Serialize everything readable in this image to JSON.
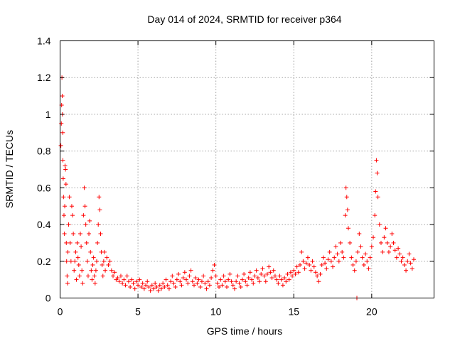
{
  "chart_data": {
    "type": "scatter",
    "title": "Day 014 of 2024, SRMTID for receiver p364",
    "xlabel": "GPS time / hours",
    "ylabel": "SRMTID / TECUs",
    "xlim": [
      0,
      24
    ],
    "ylim": [
      0,
      1.4
    ],
    "xticks": [
      0,
      5,
      10,
      15,
      20
    ],
    "yticks": [
      0,
      0.2,
      0.4,
      0.6,
      0.8,
      1,
      1.2,
      1.4
    ],
    "grid": true,
    "marker": "plus",
    "color": "#ff0000",
    "series": [
      {
        "name": "SRMTID",
        "points": [
          [
            0.05,
            0.83
          ],
          [
            0.08,
            0.95
          ],
          [
            0.1,
            1.05
          ],
          [
            0.12,
            1.2
          ],
          [
            0.14,
            1.1
          ],
          [
            0.15,
            1.0
          ],
          [
            0.17,
            0.9
          ],
          [
            0.18,
            0.75
          ],
          [
            0.2,
            0.65
          ],
          [
            0.22,
            0.55
          ],
          [
            0.25,
            0.45
          ],
          [
            0.28,
            0.35
          ],
          [
            0.3,
            0.5
          ],
          [
            0.32,
            0.72
          ],
          [
            0.35,
            0.7
          ],
          [
            0.38,
            0.62
          ],
          [
            0.4,
            0.3
          ],
          [
            0.42,
            0.2
          ],
          [
            0.45,
            0.12
          ],
          [
            0.48,
            0.08
          ],
          [
            0.5,
            0.25
          ],
          [
            0.55,
            0.4
          ],
          [
            0.6,
            0.55
          ],
          [
            0.65,
            0.3
          ],
          [
            0.7,
            0.2
          ],
          [
            0.75,
            0.5
          ],
          [
            0.8,
            0.45
          ],
          [
            0.85,
            0.35
          ],
          [
            0.9,
            0.15
          ],
          [
            0.95,
            0.2
          ],
          [
            1.0,
            0.25
          ],
          [
            1.05,
            0.1
          ],
          [
            1.1,
            0.3
          ],
          [
            1.15,
            0.22
          ],
          [
            1.2,
            0.18
          ],
          [
            1.25,
            0.12
          ],
          [
            1.3,
            0.35
          ],
          [
            1.35,
            0.28
          ],
          [
            1.4,
            0.15
          ],
          [
            1.45,
            0.08
          ],
          [
            1.5,
            0.45
          ],
          [
            1.55,
            0.6
          ],
          [
            1.6,
            0.5
          ],
          [
            1.65,
            0.4
          ],
          [
            1.7,
            0.3
          ],
          [
            1.75,
            0.2
          ],
          [
            1.8,
            0.12
          ],
          [
            1.85,
            0.35
          ],
          [
            1.9,
            0.42
          ],
          [
            1.95,
            0.25
          ],
          [
            2.0,
            0.15
          ],
          [
            2.05,
            0.1
          ],
          [
            2.1,
            0.18
          ],
          [
            2.15,
            0.22
          ],
          [
            2.2,
            0.12
          ],
          [
            2.25,
            0.08
          ],
          [
            2.3,
            0.15
          ],
          [
            2.35,
            0.2
          ],
          [
            2.4,
            0.3
          ],
          [
            2.45,
            0.4
          ],
          [
            2.5,
            0.55
          ],
          [
            2.55,
            0.48
          ],
          [
            2.6,
            0.35
          ],
          [
            2.65,
            0.25
          ],
          [
            2.7,
            0.18
          ],
          [
            2.75,
            0.12
          ],
          [
            2.8,
            0.2
          ],
          [
            2.85,
            0.25
          ],
          [
            2.9,
            0.15
          ],
          [
            3.0,
            0.22
          ],
          [
            3.1,
            0.18
          ],
          [
            3.2,
            0.2
          ],
          [
            3.3,
            0.15
          ],
          [
            3.4,
            0.12
          ],
          [
            3.5,
            0.14
          ],
          [
            3.6,
            0.1
          ],
          [
            3.7,
            0.11
          ],
          [
            3.8,
            0.09
          ],
          [
            3.9,
            0.12
          ],
          [
            4.0,
            0.08
          ],
          [
            4.1,
            0.1
          ],
          [
            4.2,
            0.07
          ],
          [
            4.3,
            0.12
          ],
          [
            4.4,
            0.09
          ],
          [
            4.5,
            0.06
          ],
          [
            4.6,
            0.1
          ],
          [
            4.7,
            0.08
          ],
          [
            4.8,
            0.05
          ],
          [
            4.9,
            0.09
          ],
          [
            5.0,
            0.07
          ],
          [
            5.1,
            0.1
          ],
          [
            5.2,
            0.06
          ],
          [
            5.3,
            0.08
          ],
          [
            5.4,
            0.05
          ],
          [
            5.5,
            0.07
          ],
          [
            5.6,
            0.09
          ],
          [
            5.7,
            0.06
          ],
          [
            5.8,
            0.04
          ],
          [
            5.9,
            0.07
          ],
          [
            6.0,
            0.05
          ],
          [
            6.1,
            0.08
          ],
          [
            6.2,
            0.06
          ],
          [
            6.3,
            0.04
          ],
          [
            6.4,
            0.07
          ],
          [
            6.5,
            0.05
          ],
          [
            6.6,
            0.08
          ],
          [
            6.7,
            0.06
          ],
          [
            6.8,
            0.1
          ],
          [
            6.9,
            0.07
          ],
          [
            7.0,
            0.05
          ],
          [
            7.1,
            0.09
          ],
          [
            7.2,
            0.12
          ],
          [
            7.3,
            0.08
          ],
          [
            7.4,
            0.06
          ],
          [
            7.5,
            0.1
          ],
          [
            7.6,
            0.13
          ],
          [
            7.7,
            0.09
          ],
          [
            7.8,
            0.07
          ],
          [
            7.9,
            0.11
          ],
          [
            8.0,
            0.14
          ],
          [
            8.1,
            0.1
          ],
          [
            8.2,
            0.08
          ],
          [
            8.3,
            0.12
          ],
          [
            8.4,
            0.15
          ],
          [
            8.5,
            0.09
          ],
          [
            8.6,
            0.07
          ],
          [
            8.7,
            0.11
          ],
          [
            8.8,
            0.08
          ],
          [
            8.9,
            0.1
          ],
          [
            9.0,
            0.06
          ],
          [
            9.1,
            0.09
          ],
          [
            9.2,
            0.12
          ],
          [
            9.3,
            0.08
          ],
          [
            9.4,
            0.05
          ],
          [
            9.5,
            0.09
          ],
          [
            9.6,
            0.07
          ],
          [
            9.7,
            0.11
          ],
          [
            9.8,
            0.15
          ],
          [
            9.9,
            0.18
          ],
          [
            10.0,
            0.12
          ],
          [
            10.1,
            0.08
          ],
          [
            10.2,
            0.06
          ],
          [
            10.3,
            0.1
          ],
          [
            10.4,
            0.07
          ],
          [
            10.5,
            0.12
          ],
          [
            10.6,
            0.09
          ],
          [
            10.7,
            0.06
          ],
          [
            10.8,
            0.1
          ],
          [
            10.9,
            0.13
          ],
          [
            11.0,
            0.09
          ],
          [
            11.1,
            0.07
          ],
          [
            11.2,
            0.05
          ],
          [
            11.3,
            0.09
          ],
          [
            11.4,
            0.12
          ],
          [
            11.5,
            0.08
          ],
          [
            11.6,
            0.06
          ],
          [
            11.7,
            0.1
          ],
          [
            11.8,
            0.13
          ],
          [
            11.9,
            0.09
          ],
          [
            12.0,
            0.07
          ],
          [
            12.1,
            0.11
          ],
          [
            12.2,
            0.14
          ],
          [
            12.3,
            0.1
          ],
          [
            12.4,
            0.08
          ],
          [
            12.5,
            0.12
          ],
          [
            12.6,
            0.15
          ],
          [
            12.7,
            0.11
          ],
          [
            12.8,
            0.09
          ],
          [
            12.9,
            0.13
          ],
          [
            13.0,
            0.16
          ],
          [
            13.1,
            0.12
          ],
          [
            13.2,
            0.09
          ],
          [
            13.3,
            0.13
          ],
          [
            13.4,
            0.17
          ],
          [
            13.5,
            0.14
          ],
          [
            13.6,
            0.11
          ],
          [
            13.7,
            0.15
          ],
          [
            13.8,
            0.12
          ],
          [
            13.9,
            0.1
          ],
          [
            14.0,
            0.08
          ],
          [
            14.1,
            0.12
          ],
          [
            14.2,
            0.1
          ],
          [
            14.3,
            0.07
          ],
          [
            14.4,
            0.11
          ],
          [
            14.5,
            0.09
          ],
          [
            14.6,
            0.13
          ],
          [
            14.7,
            0.1
          ],
          [
            14.8,
            0.14
          ],
          [
            14.9,
            0.12
          ],
          [
            15.0,
            0.15
          ],
          [
            15.1,
            0.13
          ],
          [
            15.2,
            0.17
          ],
          [
            15.3,
            0.14
          ],
          [
            15.4,
            0.18
          ],
          [
            15.5,
            0.25
          ],
          [
            15.6,
            0.2
          ],
          [
            15.7,
            0.16
          ],
          [
            15.8,
            0.19
          ],
          [
            15.9,
            0.22
          ],
          [
            16.0,
            0.18
          ],
          [
            16.1,
            0.15
          ],
          [
            16.2,
            0.2
          ],
          [
            16.3,
            0.17
          ],
          [
            16.4,
            0.14
          ],
          [
            16.5,
            0.12
          ],
          [
            16.6,
            0.09
          ],
          [
            16.7,
            0.13
          ],
          [
            16.8,
            0.18
          ],
          [
            16.9,
            0.22
          ],
          [
            17.0,
            0.19
          ],
          [
            17.1,
            0.16
          ],
          [
            17.2,
            0.21
          ],
          [
            17.3,
            0.25
          ],
          [
            17.4,
            0.2
          ],
          [
            17.5,
            0.17
          ],
          [
            17.6,
            0.22
          ],
          [
            17.7,
            0.28
          ],
          [
            17.8,
            0.24
          ],
          [
            17.9,
            0.2
          ],
          [
            18.0,
            0.3
          ],
          [
            18.1,
            0.25
          ],
          [
            18.2,
            0.22
          ],
          [
            18.3,
            0.45
          ],
          [
            18.35,
            0.6
          ],
          [
            18.4,
            0.55
          ],
          [
            18.45,
            0.48
          ],
          [
            18.5,
            0.38
          ],
          [
            18.6,
            0.3
          ],
          [
            18.7,
            0.22
          ],
          [
            18.8,
            0.18
          ],
          [
            18.9,
            0.15
          ],
          [
            19.0,
            0.2
          ],
          [
            19.05,
            0.0
          ],
          [
            19.1,
            0.25
          ],
          [
            19.2,
            0.35
          ],
          [
            19.3,
            0.28
          ],
          [
            19.4,
            0.22
          ],
          [
            19.5,
            0.18
          ],
          [
            19.6,
            0.24
          ],
          [
            19.7,
            0.2
          ],
          [
            19.8,
            0.16
          ],
          [
            19.9,
            0.22
          ],
          [
            20.0,
            0.28
          ],
          [
            20.1,
            0.33
          ],
          [
            20.2,
            0.45
          ],
          [
            20.25,
            0.58
          ],
          [
            20.3,
            0.75
          ],
          [
            20.35,
            0.68
          ],
          [
            20.4,
            0.55
          ],
          [
            20.5,
            0.4
          ],
          [
            20.6,
            0.3
          ],
          [
            20.7,
            0.25
          ],
          [
            20.8,
            0.33
          ],
          [
            20.9,
            0.38
          ],
          [
            21.0,
            0.3
          ],
          [
            21.1,
            0.25
          ],
          [
            21.2,
            0.28
          ],
          [
            21.3,
            0.35
          ],
          [
            21.4,
            0.3
          ],
          [
            21.5,
            0.26
          ],
          [
            21.6,
            0.22
          ],
          [
            21.7,
            0.27
          ],
          [
            21.8,
            0.24
          ],
          [
            21.9,
            0.2
          ],
          [
            22.0,
            0.22
          ],
          [
            22.1,
            0.18
          ],
          [
            22.2,
            0.15
          ],
          [
            22.3,
            0.2
          ],
          [
            22.4,
            0.24
          ],
          [
            22.5,
            0.19
          ],
          [
            22.6,
            0.16
          ],
          [
            22.7,
            0.21
          ]
        ]
      }
    ]
  }
}
